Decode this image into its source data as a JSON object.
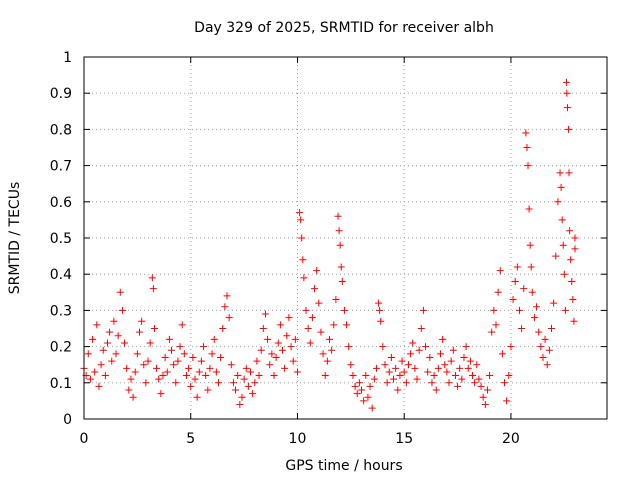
{
  "chart_data": {
    "type": "scatter",
    "title": "Day 329 of 2025, SRMTID for receiver albh",
    "xlabel": "GPS time / hours",
    "ylabel": "SRMTID / TECUs",
    "xlim": [
      0,
      24.5
    ],
    "ylim": [
      0,
      1
    ],
    "x_ticks": [
      0,
      5,
      10,
      15,
      20
    ],
    "x_tick_labels": [
      "0",
      "5",
      "10",
      "15",
      "20"
    ],
    "y_ticks": [
      0,
      0.1,
      0.2,
      0.3,
      0.4,
      0.5,
      0.6,
      0.7,
      0.8,
      0.9,
      1
    ],
    "y_tick_labels": [
      "0",
      "0.1",
      "0.2",
      "0.3",
      "0.4",
      "0.5",
      "0.6",
      "0.7",
      "0.8",
      "0.9",
      "1"
    ],
    "grid": true,
    "marker": "+",
    "marker_color": "#ff0000",
    "series": [
      {
        "name": "SRMTID",
        "points": [
          [
            0.0,
            0.14
          ],
          [
            0.1,
            0.12
          ],
          [
            0.2,
            0.18
          ],
          [
            0.3,
            0.11
          ],
          [
            0.4,
            0.22
          ],
          [
            0.5,
            0.13
          ],
          [
            0.6,
            0.26
          ],
          [
            0.7,
            0.09
          ],
          [
            0.8,
            0.15
          ],
          [
            0.9,
            0.19
          ],
          [
            1.0,
            0.12
          ],
          [
            1.1,
            0.21
          ],
          [
            1.2,
            0.24
          ],
          [
            1.3,
            0.16
          ],
          [
            1.4,
            0.27
          ],
          [
            1.5,
            0.18
          ],
          [
            1.6,
            0.23
          ],
          [
            1.7,
            0.35
          ],
          [
            1.8,
            0.3
          ],
          [
            1.9,
            0.21
          ],
          [
            2.0,
            0.14
          ],
          [
            2.1,
            0.08
          ],
          [
            2.2,
            0.11
          ],
          [
            2.3,
            0.06
          ],
          [
            2.4,
            0.13
          ],
          [
            2.5,
            0.18
          ],
          [
            2.6,
            0.24
          ],
          [
            2.7,
            0.27
          ],
          [
            2.8,
            0.15
          ],
          [
            2.9,
            0.1
          ],
          [
            3.0,
            0.16
          ],
          [
            3.1,
            0.21
          ],
          [
            3.2,
            0.39
          ],
          [
            3.25,
            0.36
          ],
          [
            3.3,
            0.25
          ],
          [
            3.4,
            0.14
          ],
          [
            3.5,
            0.11
          ],
          [
            3.6,
            0.07
          ],
          [
            3.7,
            0.12
          ],
          [
            3.8,
            0.17
          ],
          [
            3.9,
            0.13
          ],
          [
            4.0,
            0.22
          ],
          [
            4.1,
            0.19
          ],
          [
            4.2,
            0.15
          ],
          [
            4.3,
            0.1
          ],
          [
            4.4,
            0.16
          ],
          [
            4.5,
            0.2
          ],
          [
            4.6,
            0.26
          ],
          [
            4.7,
            0.18
          ],
          [
            4.8,
            0.12
          ],
          [
            4.9,
            0.14
          ],
          [
            5.0,
            0.09
          ],
          [
            5.1,
            0.17
          ],
          [
            5.2,
            0.11
          ],
          [
            5.3,
            0.06
          ],
          [
            5.4,
            0.13
          ],
          [
            5.5,
            0.16
          ],
          [
            5.6,
            0.2
          ],
          [
            5.7,
            0.12
          ],
          [
            5.8,
            0.08
          ],
          [
            5.9,
            0.14
          ],
          [
            6.0,
            0.18
          ],
          [
            6.1,
            0.22
          ],
          [
            6.2,
            0.13
          ],
          [
            6.3,
            0.1
          ],
          [
            6.4,
            0.17
          ],
          [
            6.5,
            0.25
          ],
          [
            6.6,
            0.31
          ],
          [
            6.7,
            0.34
          ],
          [
            6.8,
            0.28
          ],
          [
            6.9,
            0.15
          ],
          [
            7.0,
            0.1
          ],
          [
            7.1,
            0.08
          ],
          [
            7.2,
            0.12
          ],
          [
            7.3,
            0.04
          ],
          [
            7.4,
            0.06
          ],
          [
            7.5,
            0.11
          ],
          [
            7.6,
            0.14
          ],
          [
            7.7,
            0.09
          ],
          [
            7.8,
            0.13
          ],
          [
            7.9,
            0.07
          ],
          [
            8.0,
            0.1
          ],
          [
            8.1,
            0.16
          ],
          [
            8.2,
            0.12
          ],
          [
            8.3,
            0.19
          ],
          [
            8.4,
            0.25
          ],
          [
            8.5,
            0.29
          ],
          [
            8.6,
            0.22
          ],
          [
            8.7,
            0.15
          ],
          [
            8.8,
            0.18
          ],
          [
            8.9,
            0.12
          ],
          [
            9.0,
            0.17
          ],
          [
            9.1,
            0.21
          ],
          [
            9.2,
            0.26
          ],
          [
            9.3,
            0.19
          ],
          [
            9.4,
            0.14
          ],
          [
            9.5,
            0.23
          ],
          [
            9.6,
            0.28
          ],
          [
            9.7,
            0.2
          ],
          [
            9.8,
            0.16
          ],
          [
            9.9,
            0.22
          ],
          [
            10.0,
            0.13
          ],
          [
            10.1,
            0.57
          ],
          [
            10.15,
            0.55
          ],
          [
            10.2,
            0.5
          ],
          [
            10.25,
            0.44
          ],
          [
            10.3,
            0.39
          ],
          [
            10.4,
            0.3
          ],
          [
            10.5,
            0.25
          ],
          [
            10.6,
            0.21
          ],
          [
            10.7,
            0.28
          ],
          [
            10.8,
            0.36
          ],
          [
            10.9,
            0.41
          ],
          [
            11.0,
            0.32
          ],
          [
            11.1,
            0.24
          ],
          [
            11.2,
            0.18
          ],
          [
            11.3,
            0.12
          ],
          [
            11.4,
            0.16
          ],
          [
            11.5,
            0.22
          ],
          [
            11.6,
            0.19
          ],
          [
            11.7,
            0.26
          ],
          [
            11.8,
            0.33
          ],
          [
            11.9,
            0.56
          ],
          [
            11.95,
            0.52
          ],
          [
            12.0,
            0.48
          ],
          [
            12.05,
            0.42
          ],
          [
            12.1,
            0.38
          ],
          [
            12.2,
            0.3
          ],
          [
            12.3,
            0.26
          ],
          [
            12.4,
            0.2
          ],
          [
            12.5,
            0.15
          ],
          [
            12.6,
            0.12
          ],
          [
            12.7,
            0.09
          ],
          [
            12.8,
            0.07
          ],
          [
            12.9,
            0.1
          ],
          [
            13.0,
            0.08
          ],
          [
            13.1,
            0.05
          ],
          [
            13.2,
            0.12
          ],
          [
            13.3,
            0.06
          ],
          [
            13.4,
            0.09
          ],
          [
            13.5,
            0.03
          ],
          [
            13.6,
            0.11
          ],
          [
            13.7,
            0.14
          ],
          [
            13.8,
            0.32
          ],
          [
            13.85,
            0.3
          ],
          [
            13.9,
            0.27
          ],
          [
            14.0,
            0.2
          ],
          [
            14.1,
            0.15
          ],
          [
            14.2,
            0.1
          ],
          [
            14.3,
            0.13
          ],
          [
            14.4,
            0.17
          ],
          [
            14.5,
            0.11
          ],
          [
            14.6,
            0.14
          ],
          [
            14.7,
            0.08
          ],
          [
            14.8,
            0.12
          ],
          [
            14.9,
            0.16
          ],
          [
            15.0,
            0.13
          ],
          [
            15.1,
            0.1
          ],
          [
            15.2,
            0.15
          ],
          [
            15.3,
            0.18
          ],
          [
            15.4,
            0.21
          ],
          [
            15.5,
            0.14
          ],
          [
            15.6,
            0.11
          ],
          [
            15.7,
            0.19
          ],
          [
            15.8,
            0.25
          ],
          [
            15.9,
            0.3
          ],
          [
            16.0,
            0.2
          ],
          [
            16.1,
            0.13
          ],
          [
            16.2,
            0.17
          ],
          [
            16.3,
            0.1
          ],
          [
            16.4,
            0.12
          ],
          [
            16.5,
            0.08
          ],
          [
            16.6,
            0.14
          ],
          [
            16.7,
            0.18
          ],
          [
            16.8,
            0.22
          ],
          [
            16.9,
            0.15
          ],
          [
            17.0,
            0.13
          ],
          [
            17.1,
            0.1
          ],
          [
            17.2,
            0.16
          ],
          [
            17.3,
            0.19
          ],
          [
            17.4,
            0.12
          ],
          [
            17.5,
            0.09
          ],
          [
            17.6,
            0.14
          ],
          [
            17.7,
            0.11
          ],
          [
            17.8,
            0.17
          ],
          [
            17.9,
            0.2
          ],
          [
            18.0,
            0.14
          ],
          [
            18.1,
            0.16
          ],
          [
            18.2,
            0.12
          ],
          [
            18.3,
            0.1
          ],
          [
            18.4,
            0.15
          ],
          [
            18.5,
            0.11
          ],
          [
            18.6,
            0.09
          ],
          [
            18.7,
            0.06
          ],
          [
            18.8,
            0.04
          ],
          [
            18.9,
            0.08
          ],
          [
            19.0,
            0.12
          ],
          [
            19.1,
            0.24
          ],
          [
            19.2,
            0.3
          ],
          [
            19.3,
            0.26
          ],
          [
            19.4,
            0.35
          ],
          [
            19.5,
            0.41
          ],
          [
            19.6,
            0.18
          ],
          [
            19.7,
            0.1
          ],
          [
            19.8,
            0.05
          ],
          [
            19.9,
            0.12
          ],
          [
            20.0,
            0.2
          ],
          [
            20.1,
            0.33
          ],
          [
            20.2,
            0.38
          ],
          [
            20.3,
            0.42
          ],
          [
            20.4,
            0.3
          ],
          [
            20.5,
            0.25
          ],
          [
            20.6,
            0.36
          ],
          [
            20.7,
            0.79
          ],
          [
            20.75,
            0.75
          ],
          [
            20.8,
            0.7
          ],
          [
            20.85,
            0.58
          ],
          [
            20.9,
            0.48
          ],
          [
            20.95,
            0.42
          ],
          [
            21.0,
            0.35
          ],
          [
            21.1,
            0.28
          ],
          [
            21.2,
            0.31
          ],
          [
            21.3,
            0.24
          ],
          [
            21.4,
            0.2
          ],
          [
            21.5,
            0.17
          ],
          [
            21.6,
            0.22
          ],
          [
            21.7,
            0.15
          ],
          [
            21.8,
            0.19
          ],
          [
            21.9,
            0.25
          ],
          [
            22.0,
            0.32
          ],
          [
            22.1,
            0.45
          ],
          [
            22.2,
            0.6
          ],
          [
            22.3,
            0.68
          ],
          [
            22.35,
            0.64
          ],
          [
            22.4,
            0.55
          ],
          [
            22.45,
            0.48
          ],
          [
            22.5,
            0.4
          ],
          [
            22.55,
            0.3
          ],
          [
            22.6,
            0.93
          ],
          [
            22.62,
            0.9
          ],
          [
            22.65,
            0.86
          ],
          [
            22.7,
            0.8
          ],
          [
            22.72,
            0.68
          ],
          [
            22.75,
            0.52
          ],
          [
            22.8,
            0.44
          ],
          [
            22.85,
            0.38
          ],
          [
            22.9,
            0.33
          ],
          [
            22.95,
            0.27
          ],
          [
            23.0,
            0.5
          ],
          [
            23.0,
            0.47
          ]
        ]
      }
    ]
  }
}
